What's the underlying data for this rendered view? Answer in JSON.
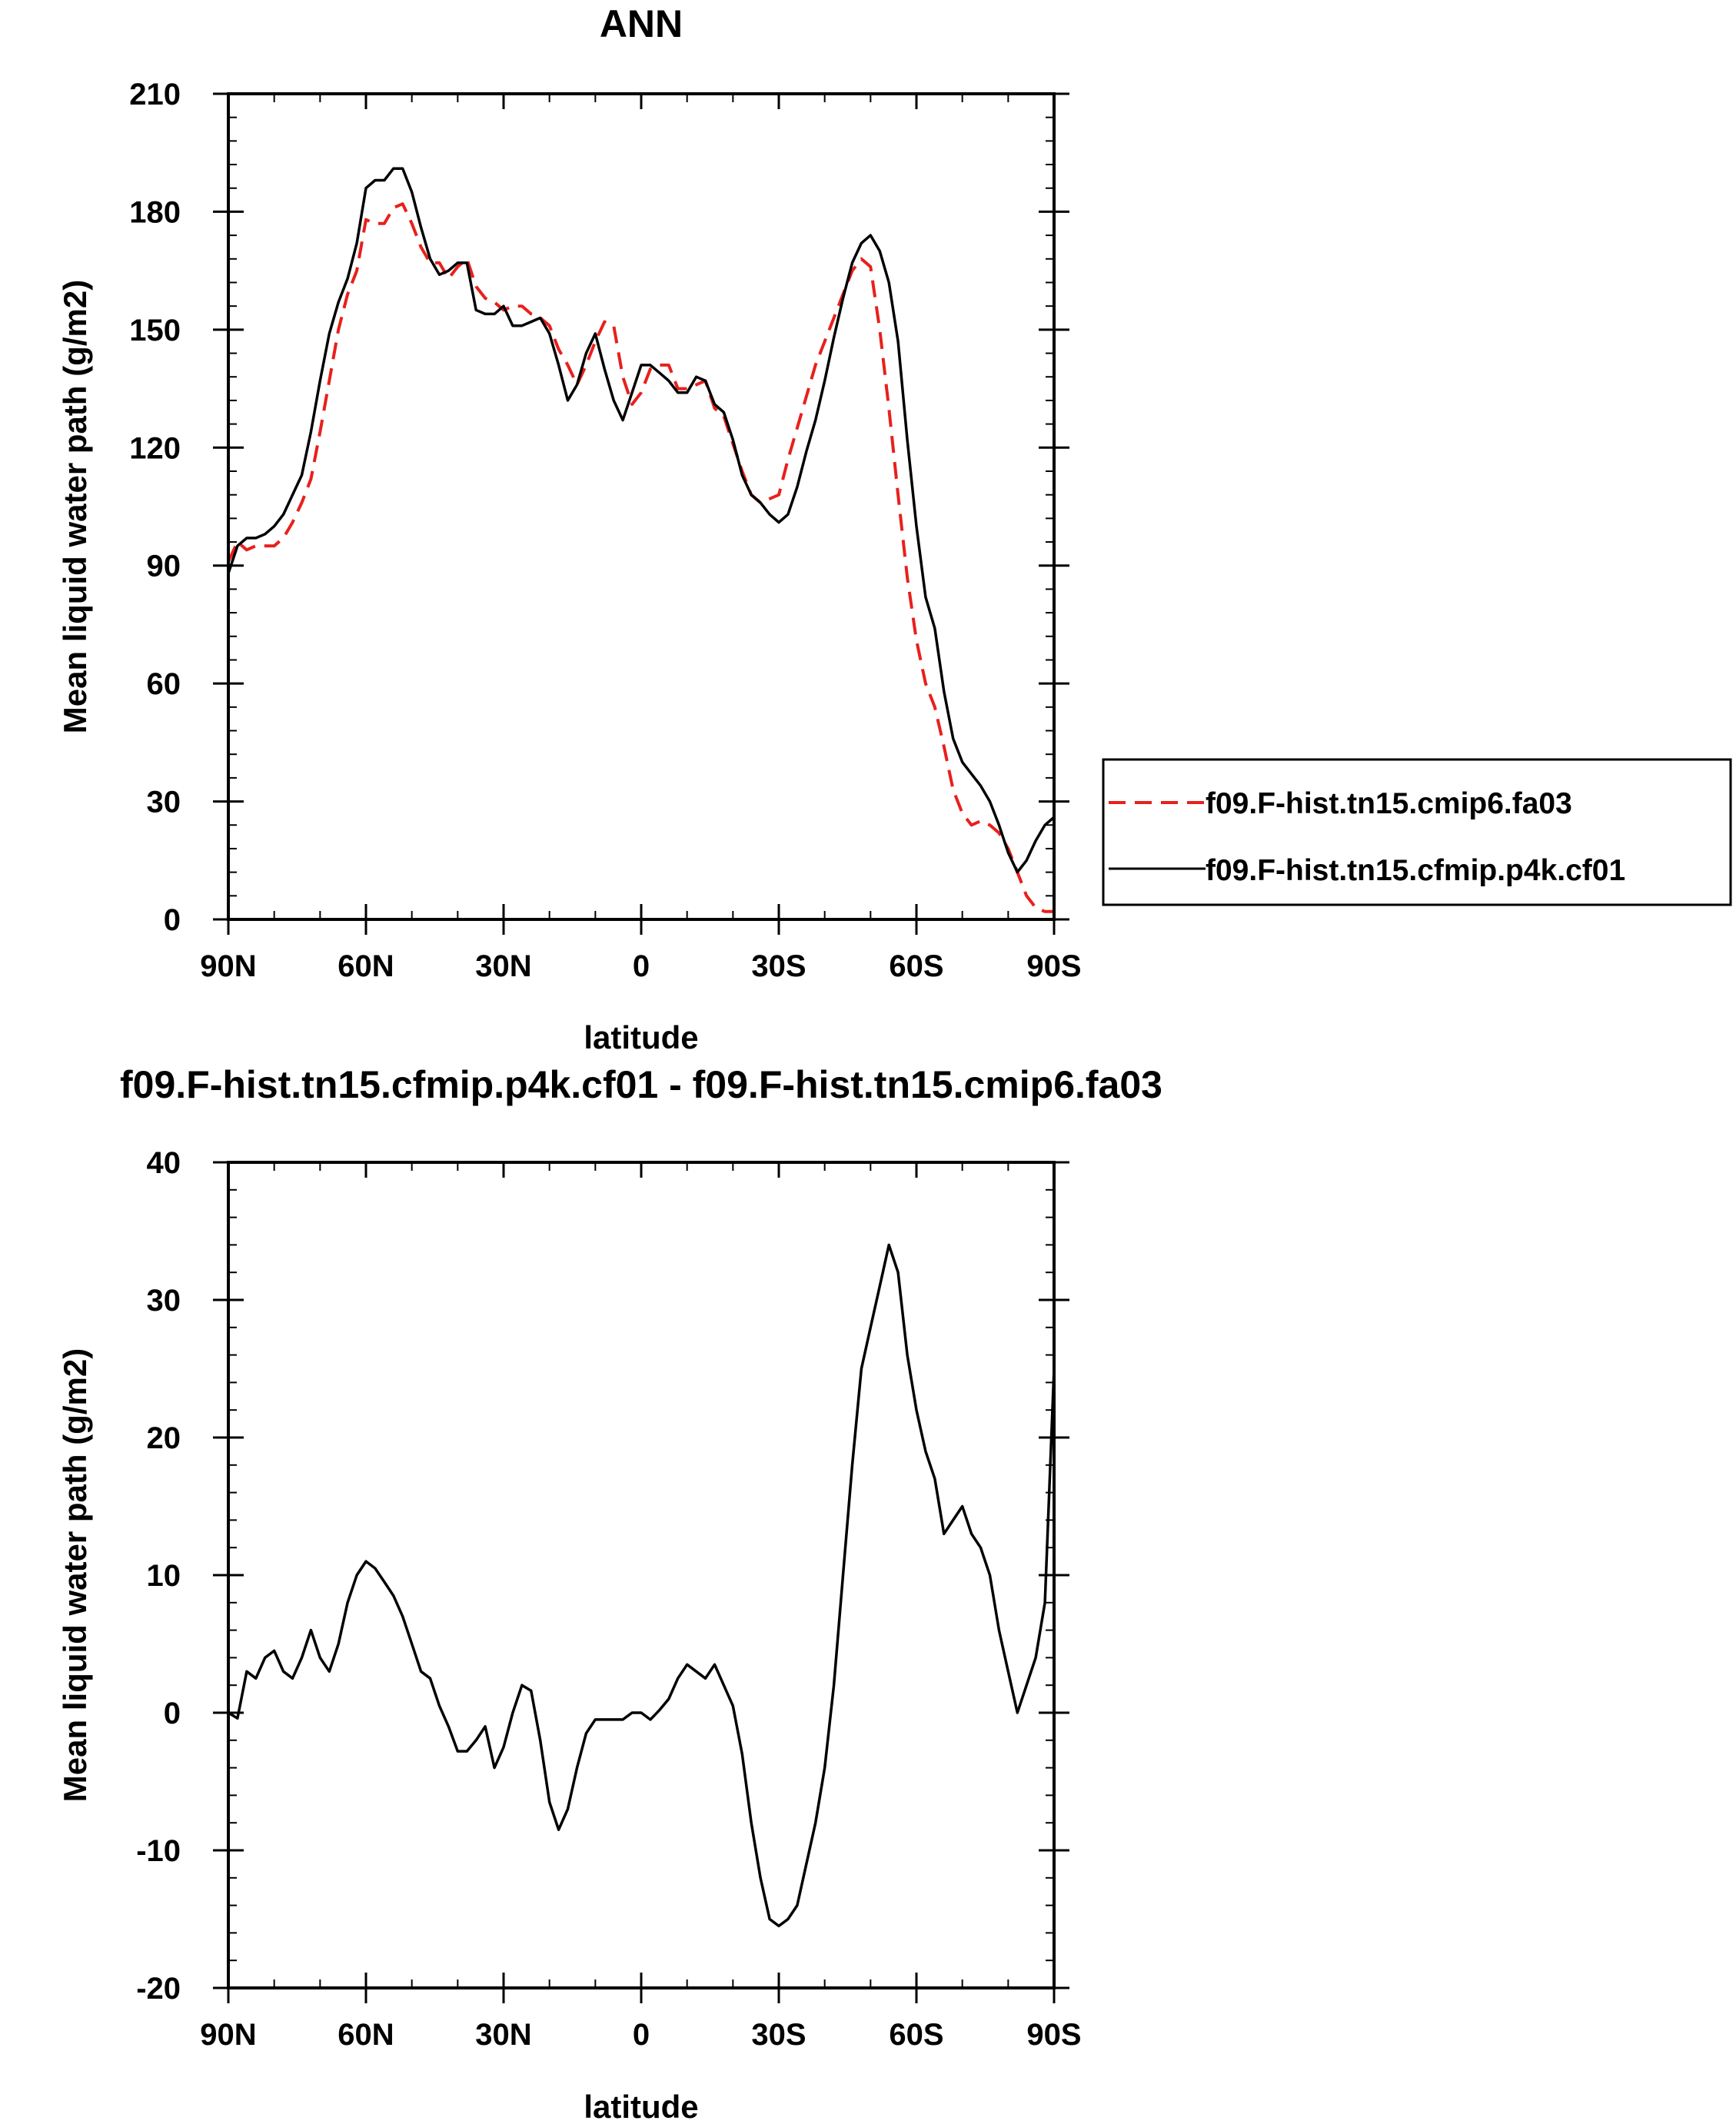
{
  "chart_data": [
    {
      "type": "line",
      "title": "ANN",
      "xlabel": "latitude",
      "ylabel": "Mean liquid water path (g/m2)",
      "xticks": [
        {
          "value": 90,
          "label": "90N"
        },
        {
          "value": 60,
          "label": "60N"
        },
        {
          "value": 30,
          "label": "30N"
        },
        {
          "value": 0,
          "label": "0"
        },
        {
          "value": -30,
          "label": "30S"
        },
        {
          "value": -60,
          "label": "60S"
        },
        {
          "value": -90,
          "label": "90S"
        }
      ],
      "yticks": [
        0,
        30,
        60,
        90,
        120,
        150,
        180,
        210
      ],
      "xlim": [
        90,
        -90
      ],
      "ylim": [
        0,
        210
      ],
      "legend": "right",
      "series": [
        {
          "name": "f09.F-hist.tn15.cmip6.fa03",
          "color": "#e8201c",
          "dash": "dashed",
          "x": [
            90,
            88,
            86,
            84,
            82,
            80,
            78,
            76,
            74,
            72,
            70,
            68,
            66,
            64,
            62,
            60,
            58,
            56,
            54,
            52,
            50,
            48,
            46,
            44,
            42,
            40,
            38,
            36,
            34,
            32,
            30,
            28,
            26,
            24,
            22,
            20,
            18,
            16,
            14,
            12,
            10,
            8,
            6,
            4,
            2,
            0,
            -2,
            -4,
            -6,
            -8,
            -10,
            -12,
            -14,
            -16,
            -18,
            -20,
            -22,
            -24,
            -26,
            -28,
            -30,
            -32,
            -34,
            -36,
            -38,
            -40,
            -42,
            -44,
            -46,
            -48,
            -50,
            -52,
            -54,
            -56,
            -58,
            -60,
            -62,
            -64,
            -66,
            -68,
            -70,
            -72,
            -74,
            -76,
            -78,
            -80,
            -82,
            -84,
            -86,
            -88,
            -90
          ],
          "y": [
            91,
            96,
            94,
            95,
            95,
            95,
            97,
            101,
            106,
            112,
            124,
            137,
            150,
            159,
            165,
            178,
            177,
            177,
            181,
            182,
            177,
            171,
            167,
            167,
            163,
            166,
            168,
            161,
            158,
            157,
            155,
            156,
            156,
            154,
            153,
            151,
            145,
            141,
            136,
            141,
            147,
            152,
            151,
            138,
            131,
            134,
            140,
            141,
            141,
            135,
            135,
            136,
            137,
            130,
            128,
            121,
            114,
            108,
            106,
            107,
            108,
            117,
            125,
            133,
            141,
            147,
            153,
            159,
            165,
            168,
            166,
            150,
            130,
            108,
            87,
            71,
            60,
            54,
            44,
            33,
            27,
            24,
            25,
            24,
            22,
            18,
            12,
            6,
            3,
            2,
            2
          ]
        },
        {
          "name": "f09.F-hist.tn15.cfmip.p4k.cf01",
          "color": "#000000",
          "dash": "solid",
          "x": [
            90,
            88,
            86,
            84,
            82,
            80,
            78,
            76,
            74,
            72,
            70,
            68,
            66,
            64,
            62,
            60,
            58,
            56,
            54,
            52,
            50,
            48,
            46,
            44,
            42,
            40,
            38,
            36,
            34,
            32,
            30,
            28,
            26,
            24,
            22,
            20,
            18,
            16,
            14,
            12,
            10,
            8,
            6,
            4,
            2,
            0,
            -2,
            -4,
            -6,
            -8,
            -10,
            -12,
            -14,
            -16,
            -18,
            -20,
            -22,
            -24,
            -26,
            -28,
            -30,
            -32,
            -34,
            -36,
            -38,
            -40,
            -42,
            -44,
            -46,
            -48,
            -50,
            -52,
            -54,
            -56,
            -58,
            -60,
            -62,
            -64,
            -66,
            -68,
            -70,
            -72,
            -74,
            -76,
            -78,
            -80,
            -82,
            -84,
            -86,
            -88,
            -90
          ],
          "y": [
            88,
            95,
            97,
            97,
            98,
            100,
            103,
            108,
            113,
            124,
            137,
            149,
            157,
            163,
            172,
            186,
            188,
            188,
            191,
            191,
            185,
            176,
            168,
            164,
            165,
            167,
            167,
            155,
            154,
            154,
            156,
            151,
            151,
            152,
            153,
            149,
            141,
            132,
            136,
            144,
            149,
            140,
            132,
            127,
            134,
            141,
            141,
            139,
            137,
            134,
            134,
            138,
            137,
            131,
            129,
            122,
            113,
            108,
            106,
            103,
            101,
            103,
            110,
            119,
            127,
            137,
            148,
            158,
            167,
            172,
            174,
            170,
            162,
            147,
            122,
            100,
            82,
            74,
            58,
            46,
            40,
            37,
            34,
            30,
            24,
            17,
            12,
            15,
            20,
            24,
            26
          ]
        }
      ]
    },
    {
      "type": "line",
      "title": "f09.F-hist.tn15.cfmip.p4k.cf01 - f09.F-hist.tn15.cmip6.fa03",
      "xlabel": "latitude",
      "ylabel": "Mean liquid water path (g/m2)",
      "xticks": [
        {
          "value": 90,
          "label": "90N"
        },
        {
          "value": 60,
          "label": "60N"
        },
        {
          "value": 30,
          "label": "30N"
        },
        {
          "value": 0,
          "label": "0"
        },
        {
          "value": -30,
          "label": "30S"
        },
        {
          "value": -60,
          "label": "60S"
        },
        {
          "value": -90,
          "label": "90S"
        }
      ],
      "yticks": [
        {
          "value": -20,
          "label": "-20"
        },
        {
          "value": -10,
          "label": "-10"
        },
        {
          "value": 0,
          "label": "0"
        },
        {
          "value": 10,
          "label": "10"
        },
        {
          "value": 20,
          "label": "20"
        },
        {
          "value": 30,
          "label": "30"
        },
        {
          "value": 40,
          "label": "40"
        }
      ],
      "xlim": [
        90,
        -90
      ],
      "ylim": [
        -20,
        40
      ],
      "series": [
        {
          "color": "#000000",
          "dash": "solid",
          "x": [
            90,
            88,
            86,
            84,
            82,
            80,
            78,
            76,
            74,
            72,
            70,
            68,
            66,
            64,
            62,
            60,
            58,
            56,
            54,
            52,
            50,
            48,
            46,
            44,
            42,
            40,
            38,
            36,
            34,
            32,
            30,
            28,
            26,
            24,
            22,
            20,
            18,
            16,
            14,
            12,
            10,
            8,
            6,
            4,
            2,
            0,
            -2,
            -4,
            -6,
            -8,
            -10,
            -12,
            -14,
            -16,
            -18,
            -20,
            -22,
            -24,
            -26,
            -28,
            -30,
            -32,
            -34,
            -36,
            -38,
            -40,
            -42,
            -44,
            -46,
            -48,
            -50,
            -52,
            -54,
            -56,
            -58,
            -60,
            -62,
            -64,
            -66,
            -68,
            -70,
            -72,
            -74,
            -76,
            -78,
            -80,
            -82,
            -84,
            -86,
            -88,
            -90
          ],
          "y": [
            0,
            -0.4,
            3,
            2.5,
            4,
            4.5,
            3,
            2.5,
            4,
            6,
            4,
            3,
            5,
            8,
            10,
            11,
            10.5,
            9.5,
            8.5,
            7,
            5,
            3,
            2.5,
            0.5,
            -1,
            -2.8,
            -2.8,
            -2,
            -1,
            -4,
            -2.5,
            0,
            2,
            1.6,
            -2,
            -6.5,
            -8.5,
            -7,
            -4,
            -1.5,
            -0.5,
            -0.5,
            -0.5,
            -0.5,
            0,
            0,
            -0.5,
            0.2,
            1,
            2.5,
            3.5,
            3,
            2.5,
            3.5,
            2,
            0.5,
            -3,
            -8,
            -12,
            -15,
            -15.5,
            -15,
            -14,
            -11,
            -8,
            -4,
            2,
            10,
            18,
            25,
            28,
            31,
            34,
            32,
            26,
            22,
            19,
            17,
            13,
            14,
            15,
            13,
            12,
            10,
            6,
            3,
            0,
            2,
            4,
            8,
            25
          ]
        }
      ]
    }
  ]
}
